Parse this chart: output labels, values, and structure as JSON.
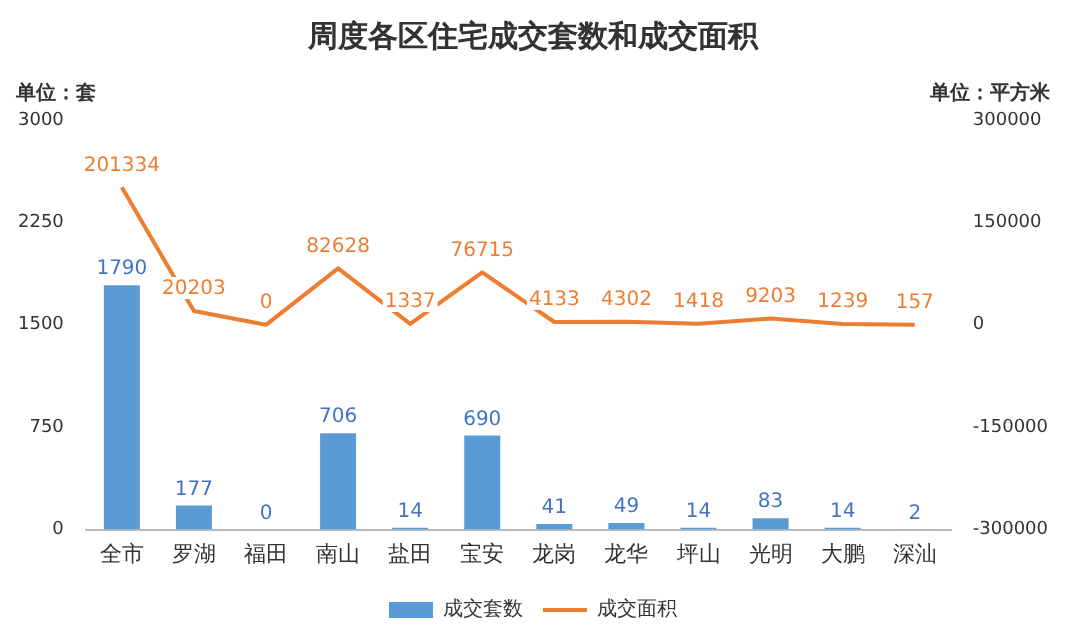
{
  "chart_data": {
    "type": "bar",
    "title": "周度各区住宅成交套数和成交面积",
    "ylabel": "单位：套",
    "y2label": "单位：平方米",
    "categories": [
      "全市",
      "罗湖",
      "福田",
      "南山",
      "盐田",
      "宝安",
      "龙岗",
      "龙华",
      "坪山",
      "光明",
      "大鹏",
      "深汕"
    ],
    "series": [
      {
        "name": "成交套数",
        "color": "#5b9bd5",
        "values": [
          1790,
          177,
          0,
          706,
          14,
          690,
          41,
          49,
          14,
          83,
          14,
          2
        ]
      },
      {
        "name": "成交面积",
        "type": "line",
        "axis": "y2",
        "color": "#ed7d31",
        "values": [
          201334,
          20203,
          0,
          82628,
          1337,
          76715,
          4133,
          4302,
          1418,
          9203,
          1239,
          157
        ]
      }
    ],
    "ylim": [
      0,
      3000
    ],
    "yticks": [
      0,
      750,
      1500,
      2250,
      3000
    ],
    "y2lim": [
      -300000,
      300000
    ],
    "y2ticks": [
      -300000,
      -150000,
      0,
      150000,
      300000
    ],
    "data_labels": true,
    "grid": false,
    "legend": "bottom",
    "marker": "none",
    "line_style": "solid"
  }
}
